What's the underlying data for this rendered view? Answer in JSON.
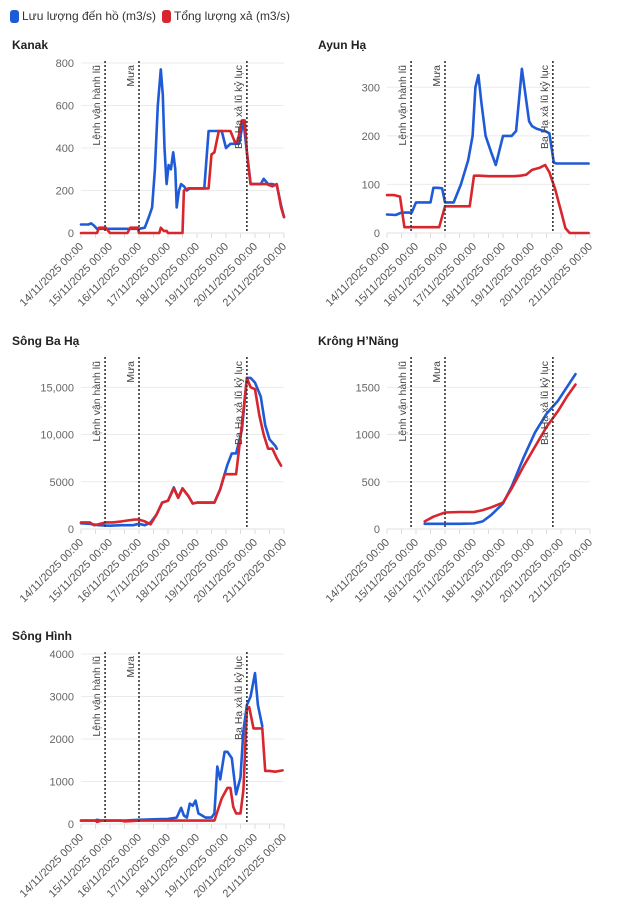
{
  "legend": [
    {
      "label": "Lưu lượng đến hồ (m3/s)",
      "color": "#1f5bd6"
    },
    {
      "label": "Tổng lượng xả (m3/s)",
      "color": "#d7262e"
    }
  ],
  "x_ticks": [
    "14/11/2025 00:00",
    "15/11/2025 00:00",
    "16/11/2025 00:00",
    "17/11/2025 00:00",
    "18/11/2025 00:00",
    "19/11/2025 00:00",
    "20/11/2025 00:00",
    "21/11/2025 00:00"
  ],
  "events": [
    {
      "label": "Lệnh vận hành lũ",
      "day": 0.83
    },
    {
      "label": "Mưa",
      "day": 2.0
    },
    {
      "label": "Ba Hạ xả lũ kỷ lục",
      "day": 5.72
    }
  ],
  "chart_data": [
    {
      "type": "line",
      "title": "Kanak",
      "xlabel": "",
      "ylabel": "",
      "x_unit": "days since 14/11/2025 00:00",
      "xlim": [
        0,
        7
      ],
      "ylim": [
        0,
        800
      ],
      "y_ticks": [
        0,
        200,
        400,
        600,
        800
      ],
      "y_tick_labels": [
        "0",
        "200",
        "400",
        "600",
        "800"
      ],
      "grid": true,
      "legend": "top-left",
      "series": [
        {
          "name": "Lưu lượng đến hồ (m3/s)",
          "x": [
            0,
            0.25,
            0.35,
            0.45,
            0.55,
            0.65,
            0.8,
            1.0,
            1.3,
            1.6,
            1.85,
            2.0,
            2.2,
            2.35,
            2.45,
            2.55,
            2.65,
            2.75,
            2.82,
            2.88,
            2.95,
            3.02,
            3.1,
            3.18,
            3.25,
            3.3,
            3.38,
            3.45,
            3.55,
            3.65,
            3.75,
            3.85,
            3.95,
            4.1,
            4.25,
            4.4,
            4.55,
            4.7,
            4.85,
            5.0,
            5.15,
            5.3,
            5.45,
            5.6,
            5.72,
            5.85,
            6.0,
            6.2,
            6.3,
            6.45,
            6.6,
            6.75,
            6.9,
            7.0
          ],
          "y": [
            40,
            40,
            45,
            35,
            20,
            20,
            20,
            20,
            20,
            20,
            20,
            20,
            25,
            80,
            120,
            300,
            600,
            770,
            650,
            400,
            230,
            320,
            300,
            380,
            300,
            120,
            200,
            230,
            220,
            200,
            210,
            210,
            210,
            210,
            210,
            480,
            480,
            480,
            480,
            400,
            420,
            420,
            420,
            530,
            380,
            230,
            230,
            230,
            255,
            230,
            230,
            225,
            130,
            75
          ]
        },
        {
          "name": "Tổng lượng xả (m3/s)",
          "x": [
            0,
            0.3,
            0.55,
            0.62,
            0.85,
            1.0,
            1.3,
            1.6,
            1.7,
            1.95,
            2.0,
            2.2,
            2.5,
            2.7,
            2.75,
            2.85,
            2.95,
            3.0,
            3.2,
            3.45,
            3.5,
            3.55,
            3.7,
            3.9,
            4.1,
            4.3,
            4.4,
            4.5,
            4.6,
            4.75,
            4.9,
            5.0,
            5.15,
            5.3,
            5.4,
            5.55,
            5.65,
            5.72,
            5.85,
            6.0,
            6.2,
            6.4,
            6.6,
            6.75,
            6.9,
            7.0
          ],
          "y": [
            0,
            0,
            0,
            25,
            25,
            0,
            0,
            0,
            25,
            25,
            0,
            0,
            0,
            0,
            25,
            10,
            10,
            0,
            0,
            0,
            0,
            200,
            210,
            210,
            210,
            210,
            210,
            370,
            380,
            480,
            480,
            480,
            480,
            430,
            430,
            530,
            530,
            380,
            230,
            230,
            230,
            230,
            220,
            230,
            120,
            75
          ]
        }
      ]
    },
    {
      "type": "line",
      "title": "Ayun Hạ",
      "xlabel": "",
      "ylabel": "",
      "x_unit": "days since 14/11/2025 00:00",
      "xlim": [
        0,
        7
      ],
      "ylim": [
        0,
        350
      ],
      "y_ticks": [
        0,
        100,
        200,
        300
      ],
      "y_tick_labels": [
        "0",
        "100",
        "200",
        "300"
      ],
      "grid": true,
      "series": [
        {
          "name": "Lưu lượng đến hồ (m3/s)",
          "x": [
            0,
            0.3,
            0.5,
            0.85,
            1.0,
            1.2,
            1.5,
            1.6,
            1.75,
            1.9,
            2.0,
            2.3,
            2.55,
            2.8,
            2.95,
            3.05,
            3.15,
            3.25,
            3.4,
            3.6,
            3.75,
            4.0,
            4.15,
            4.3,
            4.45,
            4.65,
            4.9,
            5.0,
            5.15,
            5.3,
            5.45,
            5.6,
            5.75,
            5.85,
            6.0,
            6.2,
            6.35,
            6.55,
            6.7,
            6.95
          ],
          "y": [
            38,
            37,
            42,
            42,
            63,
            63,
            63,
            93,
            93,
            92,
            63,
            63,
            100,
            150,
            200,
            300,
            325,
            270,
            200,
            165,
            140,
            200,
            200,
            200,
            210,
            338,
            230,
            220,
            215,
            212,
            210,
            205,
            145,
            143,
            143,
            143,
            143,
            143,
            143,
            143
          ]
        },
        {
          "name": "Tổng lượng xả (m3/s)",
          "x": [
            0,
            0.25,
            0.45,
            0.6,
            0.9,
            1.2,
            1.5,
            1.8,
            2.0,
            2.3,
            2.6,
            2.85,
            3.0,
            3.2,
            3.5,
            3.8,
            4.1,
            4.4,
            4.6,
            4.8,
            5.0,
            5.25,
            5.45,
            5.6,
            5.8,
            6.0,
            6.15,
            6.3,
            6.5,
            6.7,
            6.95
          ],
          "y": [
            78,
            78,
            75,
            12,
            12,
            12,
            12,
            12,
            55,
            55,
            55,
            55,
            118,
            118,
            117,
            117,
            117,
            117,
            118,
            120,
            130,
            134,
            140,
            125,
            90,
            45,
            10,
            0,
            0,
            0,
            0
          ]
        }
      ]
    },
    {
      "type": "line",
      "title": "Sông Ba Hạ",
      "xlabel": "",
      "ylabel": "",
      "x_unit": "days since 14/11/2025 00:00",
      "xlim": [
        0,
        7
      ],
      "ylim": [
        0,
        18000
      ],
      "y_ticks": [
        0,
        5000,
        10000,
        15000
      ],
      "y_tick_labels": [
        "0",
        "5000",
        "10,000",
        "15,000"
      ],
      "grid": true,
      "series": [
        {
          "name": "Lưu lượng đến hồ (m3/s)",
          "x": [
            0,
            0.3,
            0.6,
            1.0,
            1.4,
            1.8,
            2.0,
            2.2,
            2.4,
            2.6,
            2.8,
            3.0,
            3.2,
            3.35,
            3.5,
            3.7,
            3.85,
            4.0,
            4.3,
            4.6,
            4.8,
            4.95,
            5.05,
            5.2,
            5.35,
            5.55,
            5.72,
            5.85,
            6.0,
            6.2,
            6.35,
            6.5,
            6.7,
            6.75
          ],
          "y": [
            600,
            550,
            400,
            350,
            400,
            400,
            550,
            400,
            700,
            1500,
            2800,
            3000,
            4400,
            3300,
            4300,
            3500,
            2700,
            2800,
            2800,
            2800,
            4200,
            5800,
            6800,
            8000,
            8000,
            10500,
            16000,
            16000,
            15500,
            14000,
            11000,
            9500,
            8800,
            8500
          ]
        },
        {
          "name": "Tổng lượng xả (m3/s)",
          "x": [
            0,
            0.3,
            0.45,
            0.6,
            0.85,
            1.1,
            1.4,
            1.6,
            1.85,
            2.0,
            2.2,
            2.4,
            2.6,
            2.8,
            3.0,
            3.2,
            3.35,
            3.5,
            3.7,
            3.85,
            4.0,
            4.3,
            4.6,
            4.8,
            4.95,
            5.2,
            5.35,
            5.55,
            5.72,
            5.85,
            6.0,
            6.15,
            6.3,
            6.45,
            6.6,
            6.75,
            6.9
          ],
          "y": [
            700,
            700,
            400,
            500,
            700,
            700,
            800,
            900,
            1000,
            1000,
            800,
            500,
            1500,
            2800,
            3000,
            4300,
            3300,
            4300,
            3500,
            2700,
            2800,
            2800,
            2800,
            4200,
            5800,
            5800,
            5800,
            11000,
            16000,
            15000,
            14800,
            12000,
            10000,
            8500,
            8500,
            7500,
            6700
          ]
        }
      ]
    },
    {
      "type": "line",
      "title": "Krông H’Năng",
      "xlabel": "",
      "ylabel": "",
      "x_unit": "days since 14/11/2025 00:00",
      "xlim": [
        0,
        7
      ],
      "ylim": [
        0,
        1800
      ],
      "y_ticks": [
        0,
        500,
        1000,
        1500
      ],
      "y_tick_labels": [
        "0",
        "500",
        "1000",
        "1500"
      ],
      "grid": true,
      "series": [
        {
          "name": "Lưu lượng đến hồ (m3/s)",
          "x": [
            1.3,
            1.6,
            2.0,
            2.5,
            3.0,
            3.3,
            3.6,
            4.0,
            4.3,
            4.7,
            5.1,
            5.5,
            5.9,
            6.2,
            6.5
          ],
          "y": [
            55,
            55,
            55,
            55,
            58,
            80,
            150,
            270,
            450,
            750,
            1020,
            1220,
            1360,
            1500,
            1640
          ]
        },
        {
          "name": "Tổng lượng xả (m3/s)",
          "x": [
            1.3,
            1.6,
            2.0,
            2.5,
            3.0,
            3.3,
            3.6,
            4.0,
            4.3,
            4.7,
            5.1,
            5.5,
            5.9,
            6.2,
            6.5
          ],
          "y": [
            80,
            130,
            175,
            180,
            180,
            200,
            230,
            280,
            430,
            660,
            870,
            1080,
            1250,
            1400,
            1530
          ]
        }
      ]
    },
    {
      "type": "line",
      "title": "Sông Hình",
      "xlabel": "",
      "ylabel": "",
      "x_unit": "days since 14/11/2025 00:00",
      "xlim": [
        0,
        7
      ],
      "ylim": [
        0,
        4000
      ],
      "y_ticks": [
        0,
        1000,
        2000,
        3000,
        4000
      ],
      "y_tick_labels": [
        "0",
        "1000",
        "2000",
        "3000",
        "4000"
      ],
      "grid": true,
      "series": [
        {
          "name": "Lưu lượng đến hồ (m3/s)",
          "x": [
            0,
            0.5,
            0.55,
            0.7,
            1.0,
            1.5,
            2.0,
            2.5,
            3.0,
            3.3,
            3.45,
            3.55,
            3.65,
            3.75,
            3.85,
            3.95,
            4.05,
            4.3,
            4.5,
            4.6,
            4.7,
            4.8,
            4.95,
            5.05,
            5.2,
            5.35,
            5.5,
            5.6,
            5.72,
            5.85,
            6.0,
            6.1,
            6.25
          ],
          "y": [
            80,
            80,
            100,
            80,
            80,
            80,
            100,
            110,
            120,
            150,
            380,
            200,
            150,
            480,
            430,
            550,
            250,
            150,
            150,
            250,
            1350,
            1050,
            1700,
            1700,
            1550,
            700,
            1100,
            2200,
            2800,
            3000,
            3550,
            2800,
            2300
          ]
        },
        {
          "name": "Tổng lượng xả (m3/s)",
          "x": [
            0,
            0.5,
            0.55,
            0.7,
            1.0,
            1.4,
            1.5,
            2.0,
            2.5,
            3.0,
            3.5,
            4.0,
            4.5,
            4.6,
            4.85,
            5.05,
            5.15,
            5.25,
            5.35,
            5.5,
            5.6,
            5.72,
            5.8,
            5.95,
            6.1,
            6.25,
            6.35,
            6.5,
            6.7,
            6.95
          ],
          "y": [
            80,
            80,
            50,
            80,
            80,
            80,
            60,
            80,
            80,
            80,
            80,
            80,
            80,
            80,
            600,
            850,
            850,
            400,
            250,
            250,
            800,
            2700,
            2750,
            2250,
            2250,
            2250,
            1250,
            1250,
            1230,
            1260
          ]
        }
      ]
    }
  ]
}
